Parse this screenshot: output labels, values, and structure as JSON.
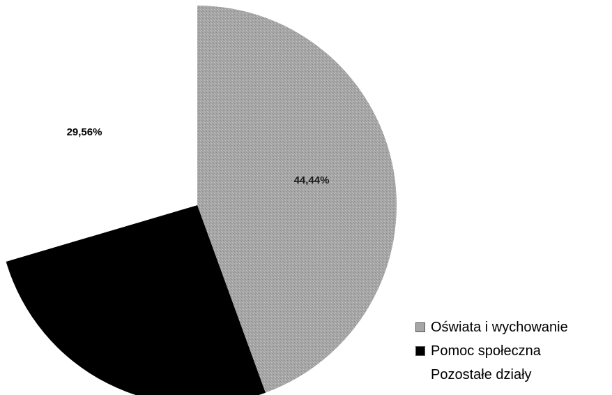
{
  "chart_data": {
    "type": "pie",
    "title": "",
    "start_angle_deg": 0,
    "direction": "clockwise",
    "slices": [
      {
        "name": "Oświata i wychowanie",
        "value": 44.44,
        "label": "44,44%",
        "color": "#a6a6a6"
      },
      {
        "name": "Pomoc społeczna",
        "value": 26.0,
        "label": "",
        "color": "#000000"
      },
      {
        "name": "Pozostałe działy",
        "value": 29.56,
        "label": "29,56%",
        "color": "#ffffff"
      }
    ],
    "legend": {
      "position": "bottom-right",
      "items": [
        "Oświata i wychowanie",
        "Pomoc społeczna",
        "Pozostałe działy"
      ]
    }
  }
}
